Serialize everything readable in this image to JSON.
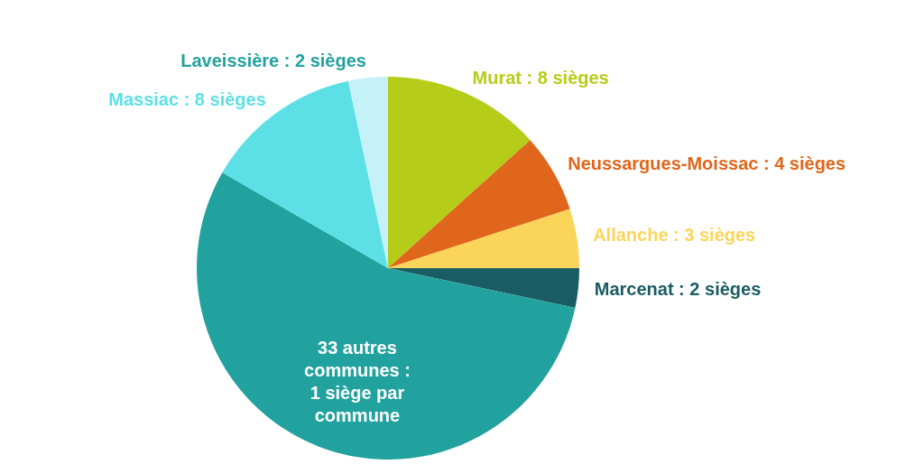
{
  "chart_data": {
    "type": "pie",
    "categories": [
      "Murat : 8 sièges",
      "Neussargues-Moissac : 4 sièges",
      "Allanche : 3 sièges",
      "Marcenat : 2 sièges",
      "33 autres communes : 1 siège par commune",
      "Massiac : 8 sièges",
      "Laveissière : 2 sièges"
    ],
    "values": [
      8,
      4,
      3,
      2,
      33,
      8,
      2
    ],
    "colors": [
      "#b5cc18",
      "#e0661c",
      "#fbd55a",
      "#1a5c63",
      "#22a29f",
      "#5ce0e6",
      "#c4f2f8"
    ]
  }
}
